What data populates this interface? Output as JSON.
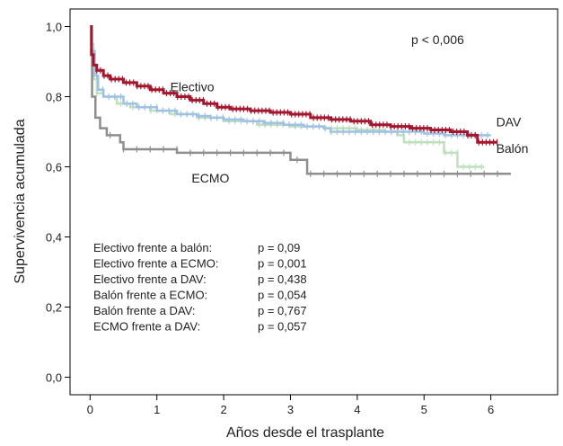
{
  "chart_data": {
    "type": "line",
    "xlabel": "Años desde el trasplante",
    "ylabel": "Supervivencia acumulada",
    "xlim": [
      -0.3,
      7.0
    ],
    "ylim": [
      -0.05,
      1.05
    ],
    "x_ticks": [
      {
        "value": 0,
        "label": "0"
      },
      {
        "value": 1,
        "label": "1"
      },
      {
        "value": 2,
        "label": "2"
      },
      {
        "value": 3,
        "label": "3"
      },
      {
        "value": 4,
        "label": "4"
      },
      {
        "value": 5,
        "label": "5"
      },
      {
        "value": 6,
        "label": "6"
      }
    ],
    "y_ticks": [
      {
        "value": 0.0,
        "label": "0,0"
      },
      {
        "value": 0.2,
        "label": "0,2"
      },
      {
        "value": 0.4,
        "label": "0,4"
      },
      {
        "value": 0.6,
        "label": "0,6"
      },
      {
        "value": 0.8,
        "label": "0,8"
      },
      {
        "value": 1.0,
        "label": "1,0"
      }
    ],
    "grid": false,
    "annotation": "p < 0,006",
    "series": [
      {
        "name": "Electivo",
        "color": "#a3162d",
        "points": [
          [
            0,
            1.0
          ],
          [
            0.02,
            0.92
          ],
          [
            0.05,
            0.89
          ],
          [
            0.1,
            0.875
          ],
          [
            0.2,
            0.86
          ],
          [
            0.3,
            0.85
          ],
          [
            0.5,
            0.84
          ],
          [
            0.7,
            0.83
          ],
          [
            0.9,
            0.82
          ],
          [
            1.1,
            0.81
          ],
          [
            1.3,
            0.8
          ],
          [
            1.5,
            0.79
          ],
          [
            1.7,
            0.78
          ],
          [
            1.9,
            0.77
          ],
          [
            2.1,
            0.765
          ],
          [
            2.4,
            0.76
          ],
          [
            2.7,
            0.755
          ],
          [
            3.0,
            0.75
          ],
          [
            3.3,
            0.74
          ],
          [
            3.6,
            0.735
          ],
          [
            3.9,
            0.73
          ],
          [
            4.2,
            0.72
          ],
          [
            4.5,
            0.715
          ],
          [
            4.8,
            0.71
          ],
          [
            5.1,
            0.705
          ],
          [
            5.4,
            0.7
          ],
          [
            5.65,
            0.69
          ],
          [
            5.8,
            0.67
          ],
          [
            6.1,
            0.67
          ]
        ]
      },
      {
        "name": "DAV",
        "color": "#9fc1e4",
        "points": [
          [
            0,
            1.0
          ],
          [
            0.03,
            0.93
          ],
          [
            0.07,
            0.86
          ],
          [
            0.12,
            0.82
          ],
          [
            0.2,
            0.8
          ],
          [
            0.4,
            0.8
          ],
          [
            0.5,
            0.78
          ],
          [
            0.7,
            0.77
          ],
          [
            1.0,
            0.76
          ],
          [
            1.3,
            0.75
          ],
          [
            1.6,
            0.745
          ],
          [
            1.8,
            0.74
          ],
          [
            2.0,
            0.735
          ],
          [
            2.3,
            0.73
          ],
          [
            2.6,
            0.725
          ],
          [
            2.9,
            0.72
          ],
          [
            3.2,
            0.715
          ],
          [
            3.5,
            0.71
          ],
          [
            3.6,
            0.7
          ],
          [
            4.0,
            0.7
          ],
          [
            4.5,
            0.7
          ],
          [
            5.0,
            0.695
          ],
          [
            5.3,
            0.69
          ],
          [
            5.6,
            0.69
          ],
          [
            6.0,
            0.69
          ]
        ]
      },
      {
        "name": "Balón",
        "color": "#bfe0bd",
        "points": [
          [
            0,
            0.95
          ],
          [
            0.05,
            0.85
          ],
          [
            0.1,
            0.81
          ],
          [
            0.2,
            0.8
          ],
          [
            0.4,
            0.78
          ],
          [
            0.6,
            0.77
          ],
          [
            0.9,
            0.76
          ],
          [
            1.2,
            0.75
          ],
          [
            1.6,
            0.74
          ],
          [
            2.0,
            0.73
          ],
          [
            2.5,
            0.72
          ],
          [
            3.0,
            0.715
          ],
          [
            3.5,
            0.71
          ],
          [
            4.0,
            0.705
          ],
          [
            4.4,
            0.7
          ],
          [
            4.6,
            0.69
          ],
          [
            4.7,
            0.67
          ],
          [
            5.0,
            0.67
          ],
          [
            5.3,
            0.64
          ],
          [
            5.5,
            0.6
          ],
          [
            5.9,
            0.6
          ]
        ]
      },
      {
        "name": "ECMO",
        "color": "#8e8e8e",
        "points": [
          [
            0,
            0.93
          ],
          [
            0.03,
            0.8
          ],
          [
            0.08,
            0.74
          ],
          [
            0.15,
            0.71
          ],
          [
            0.25,
            0.69
          ],
          [
            0.45,
            0.67
          ],
          [
            0.5,
            0.65
          ],
          [
            1.0,
            0.65
          ],
          [
            1.3,
            0.64
          ],
          [
            2.0,
            0.64
          ],
          [
            3.0,
            0.62
          ],
          [
            3.25,
            0.58
          ],
          [
            4.0,
            0.58
          ],
          [
            5.0,
            0.58
          ],
          [
            6.3,
            0.58
          ]
        ]
      }
    ],
    "series_labels": [
      {
        "name": "Electivo",
        "x": 1.2,
        "y": 0.815
      },
      {
        "name": "DAV",
        "x": 6.08,
        "y": 0.715
      },
      {
        "name": "Balón",
        "x": 6.08,
        "y": 0.64
      },
      {
        "name": "ECMO",
        "x": 1.52,
        "y": 0.555
      }
    ],
    "comparisons": [
      {
        "label": "Electivo frente a balón:",
        "p": "p = 0,09"
      },
      {
        "label": "Electivo frente a ECMO:",
        "p": "p = 0,001"
      },
      {
        "label": "Electivo frente a DAV:",
        "p": "p = 0,438"
      },
      {
        "label": "Balón frente a ECMO:",
        "p": "p = 0,054"
      },
      {
        "label": "Balón frente a DAV:",
        "p": "p = 0,767"
      },
      {
        "label": "ECMO frente a DAV:",
        "p": "p = 0,057"
      }
    ]
  }
}
